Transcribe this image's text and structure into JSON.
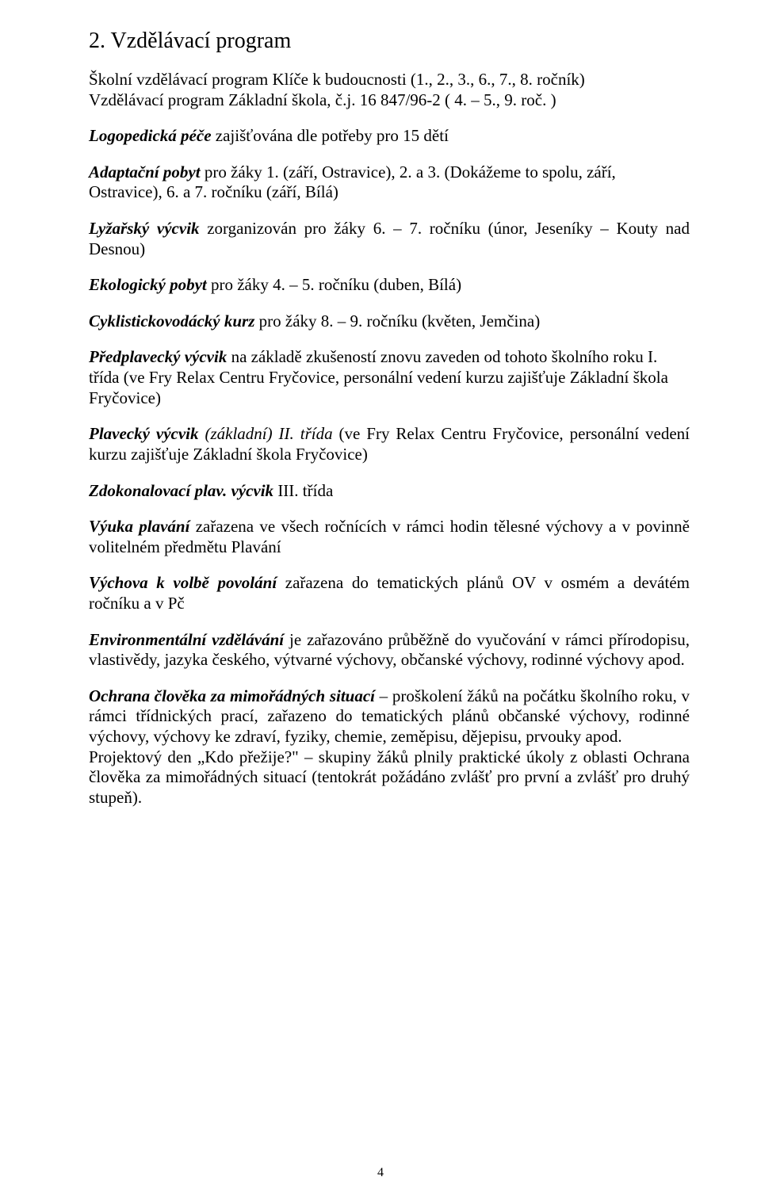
{
  "heading": "2. Vzdělávací program",
  "p1a": "Školní vzdělávací program  Klíče k budoucnosti (1., 2., 3., 6., 7., 8. ročník)",
  "p1b": "Vzdělávací program Základní škola, č.j. 16 847/96-2 ( 4. – 5., 9. roč. )",
  "p2_label": "Logopedická péče",
  "p2_rest": "  zajišťována dle potřeby pro 15 dětí",
  "p3_label": "Adaptační pobyt",
  "p3_rest": "   pro žáky 1. (září, Ostravice), 2. a 3. (Dokážeme to spolu, září, Ostravice), 6. a 7. ročníku (září, Bílá)",
  "p4_label": "Lyžařský výcvik",
  "p4_rest": "  zorganizován  pro  žáky  6. – 7. ročníku  (únor, Jeseníky – Kouty nad Desnou)",
  "p5_label": "Ekologický pobyt",
  "p5_rest": " pro žáky 4. – 5. ročníku (duben, Bílá)",
  "p6_label": "Cyklistickovodácký kurz",
  "p6_rest": " pro žáky 8. – 9. ročníku  (květen, Jemčina)",
  "p7_label": "Předplavecký výcvik",
  "p7_rest": " na základě zkušeností znovu zaveden od tohoto školního roku                                                I. třída (ve Fry Relax Centru Fryčovice, personální vedení kurzu zajišťuje Základní škola Fryčovice)",
  "p8_label": "Plavecký výcvik",
  "p8_mid": " (základní)       II. třída       ",
  "p8_rest": "(ve  Fry  Relax  Centru  Fryčovice, personální vedení kurzu zajišťuje Základní škola Fryčovice)",
  "p9_label": "Zdokonalovací plav. výcvik",
  "p9_rest": "       III. třída",
  "p10_label": "Výuka  plavání",
  "p10_rest": "  zařazena  ve  všech  ročnících  v rámci  hodin  tělesné  výchovy  a v povinně volitelném předmětu Plavání",
  "p11_label": "Výchova  k volbě  povolání",
  "p11_rest": "  zařazena  do  tematických  plánů  OV  v osmém  a devátém ročníku a v Pč",
  "p12_label": "Environmentální  vzdělávání",
  "p12_rest": "  je  zařazováno  průběžně  do  vyučování  v rámci přírodopisu, vlastivědy, jazyka českého, výtvarné výchovy, občanské výchovy, rodinné výchovy apod.",
  "p13_label": "Ochrana  člověka  za  mimořádných  situací",
  "p13_rest": "  –  proškolení  žáků  na  počátku školního  roku,  v rámci  třídnických  prací,  zařazeno  do  tematických  plánů občanské  výchovy,  rodinné  výchovy,  výchovy  ke  zdraví,  fyziky,  chemie, zeměpisu, dějepisu, prvouky apod.",
  "p13b": "Projektový den „Kdo přežije?\" – skupiny žáků  plnily praktické úkoly z oblasti Ochrana člověka za mimořádných situací (tentokrát požádáno zvlášť pro první a zvlášť pro druhý stupeň).",
  "page_number": "4"
}
